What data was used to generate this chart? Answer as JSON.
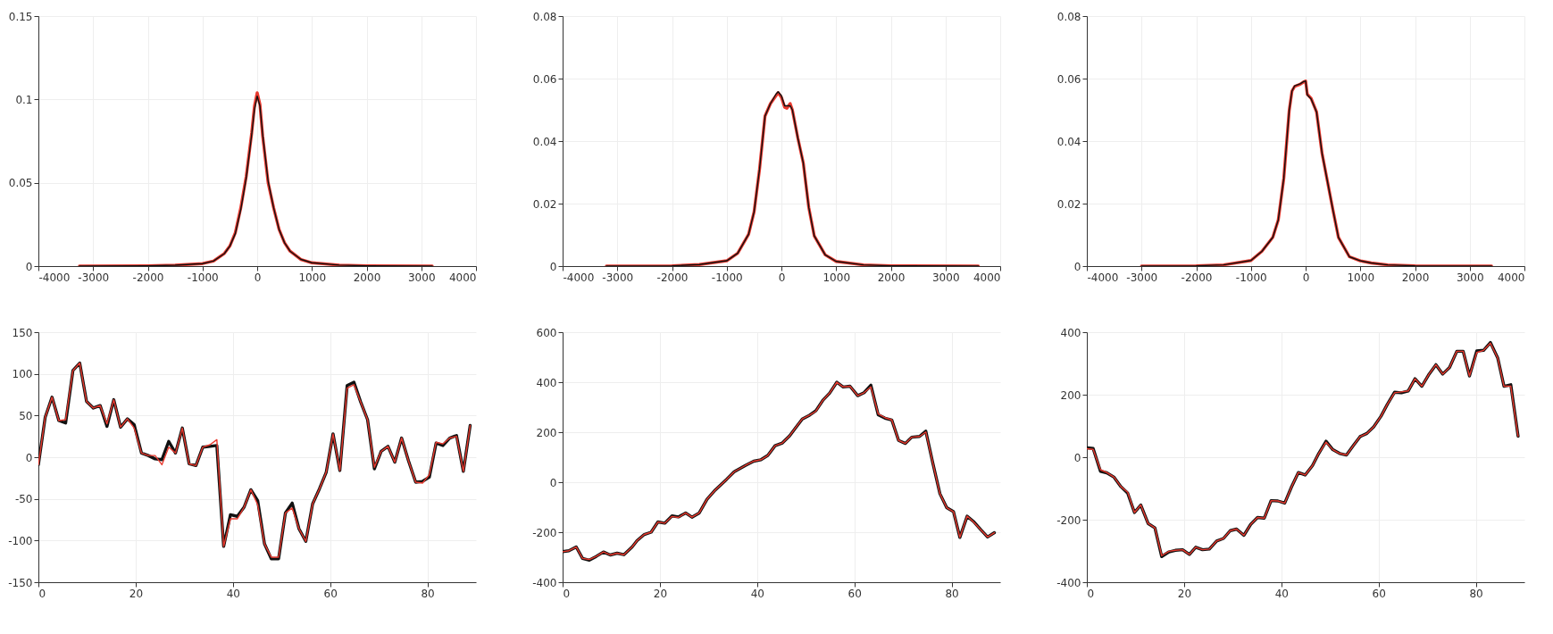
{
  "chart_data": [
    {
      "type": "line",
      "xlim": [
        -4000,
        4000
      ],
      "xticks": [
        -4000,
        -3000,
        -2000,
        -1000,
        0,
        1000,
        2000,
        3000,
        4000
      ],
      "ylim": [
        0,
        0.15
      ],
      "yticks": [
        0,
        0.05,
        0.1,
        0.15
      ],
      "grid": true,
      "series": [
        {
          "color": "#e8392e",
          "x": [
            -3250,
            -2000,
            -1500,
            -1000,
            -800,
            -600,
            -500,
            -400,
            -300,
            -200,
            -100,
            -50,
            0,
            50,
            100,
            200,
            300,
            400,
            500,
            600,
            800,
            1000,
            1500,
            2000,
            3200
          ],
          "values": [
            0,
            0.0002,
            0.0005,
            0.0015,
            0.003,
            0.0076,
            0.012,
            0.02,
            0.035,
            0.054,
            0.08,
            0.096,
            0.104,
            0.097,
            0.078,
            0.05,
            0.035,
            0.022,
            0.014,
            0.009,
            0.004,
            0.002,
            0.0006,
            0.0002,
            0
          ]
        },
        {
          "color": "#111111",
          "x": [
            -3250,
            -2000,
            -1500,
            -1000,
            -800,
            -600,
            -500,
            -400,
            -300,
            -200,
            -100,
            -50,
            0,
            50,
            100,
            200,
            300,
            400,
            500,
            600,
            800,
            1000,
            1500,
            2000,
            3200
          ],
          "values": [
            0,
            0.0002,
            0.0005,
            0.0015,
            0.003,
            0.0075,
            0.012,
            0.0195,
            0.034,
            0.053,
            0.079,
            0.094,
            0.102,
            0.096,
            0.079,
            0.051,
            0.035,
            0.022,
            0.014,
            0.009,
            0.004,
            0.002,
            0.0006,
            0.0002,
            0
          ]
        }
      ]
    },
    {
      "type": "line",
      "xlim": [
        -4000,
        4000
      ],
      "xticks": [
        -4000,
        -3000,
        -2000,
        -1000,
        0,
        1000,
        2000,
        3000,
        4000
      ],
      "ylim": [
        0,
        0.08
      ],
      "yticks": [
        0,
        0.02,
        0.04,
        0.06,
        0.08
      ],
      "grid": true,
      "series": [
        {
          "color": "#e8392e",
          "x": [
            -3200,
            -2000,
            -1500,
            -1000,
            -800,
            -600,
            -500,
            -400,
            -300,
            -200,
            -100,
            -60,
            0,
            60,
            100,
            160,
            200,
            300,
            400,
            500,
            600,
            800,
            1000,
            1500,
            2000,
            3600
          ],
          "values": [
            0,
            0.0001,
            0.0005,
            0.0017,
            0.0041,
            0.0102,
            0.0173,
            0.031,
            0.048,
            0.052,
            0.0545,
            0.0555,
            0.054,
            0.0508,
            0.0505,
            0.052,
            0.05,
            0.041,
            0.033,
            0.0188,
            0.0097,
            0.0036,
            0.0015,
            0.0004,
            0.0001,
            0
          ]
        },
        {
          "color": "#111111",
          "x": [
            -3200,
            -2000,
            -1500,
            -1000,
            -800,
            -600,
            -500,
            -400,
            -300,
            -200,
            -100,
            -60,
            0,
            60,
            100,
            160,
            200,
            300,
            400,
            500,
            600,
            800,
            1000,
            1500,
            2000,
            3600
          ],
          "values": [
            0,
            0.0001,
            0.0005,
            0.0017,
            0.0041,
            0.0102,
            0.0173,
            0.031,
            0.048,
            0.052,
            0.055,
            0.0558,
            0.0545,
            0.0513,
            0.0513,
            0.0513,
            0.05,
            0.041,
            0.033,
            0.0188,
            0.0097,
            0.0036,
            0.0015,
            0.0004,
            0.0001,
            0
          ]
        }
      ]
    },
    {
      "type": "line",
      "xlim": [
        -4000,
        4000
      ],
      "xticks": [
        -4000,
        -3000,
        -2000,
        -1000,
        0,
        1000,
        2000,
        3000,
        4000
      ],
      "ylim": [
        0,
        0.08
      ],
      "yticks": [
        0,
        0.02,
        0.04,
        0.06,
        0.08
      ],
      "grid": true,
      "series": [
        {
          "color": "#e8392e",
          "x": [
            -3000,
            -2000,
            -1500,
            -1000,
            -800,
            -600,
            -500,
            -400,
            -300,
            -250,
            -200,
            -100,
            -30,
            0,
            30,
            100,
            200,
            300,
            400,
            500,
            600,
            800,
            1000,
            1200,
            1500,
            2000,
            3400
          ],
          "values": [
            0,
            0.0001,
            0.0004,
            0.0018,
            0.0047,
            0.0092,
            0.0148,
            0.028,
            0.0498,
            0.056,
            0.0575,
            0.0582,
            0.059,
            0.0592,
            0.055,
            0.0537,
            0.0493,
            0.0361,
            0.027,
            0.0179,
            0.0092,
            0.003,
            0.0017,
            0.001,
            0.0004,
            0.0001,
            0
          ]
        },
        {
          "color": "#111111",
          "x": [
            -3000,
            -2000,
            -1500,
            -1000,
            -800,
            -600,
            -500,
            -400,
            -300,
            -250,
            -200,
            -100,
            -30,
            0,
            30,
            100,
            200,
            300,
            400,
            500,
            600,
            800,
            1000,
            1200,
            1500,
            2000,
            3400
          ],
          "values": [
            0,
            0.0001,
            0.0004,
            0.0018,
            0.0047,
            0.0092,
            0.0148,
            0.028,
            0.0498,
            0.056,
            0.0577,
            0.0583,
            0.0591,
            0.0592,
            0.0548,
            0.0535,
            0.0493,
            0.0361,
            0.027,
            0.0179,
            0.0092,
            0.003,
            0.0017,
            0.001,
            0.0004,
            0.0001,
            0
          ]
        }
      ]
    },
    {
      "type": "line",
      "xlim": [
        0,
        90
      ],
      "xticks": [
        0,
        20,
        40,
        60,
        80
      ],
      "ylim": [
        -150,
        150
      ],
      "yticks": [
        -150,
        -100,
        -50,
        0,
        50,
        100,
        150
      ],
      "grid": true,
      "series": [
        {
          "color": "#111111",
          "x": [
            0,
            1.4,
            2.8,
            4.2,
            5.6,
            7.1,
            8.5,
            9.9,
            11.3,
            12.7,
            14.1,
            15.5,
            16.9,
            18.3,
            19.7,
            21.2,
            22.6,
            24,
            25.4,
            26.8,
            28.2,
            29.6,
            31,
            32.4,
            33.8,
            35.3,
            36.7,
            38.1,
            39.5,
            40.9,
            42.3,
            43.7,
            45.1,
            46.5,
            47.9,
            49.4,
            50.8,
            52.2,
            53.6,
            55,
            56.4,
            57.8,
            59.2,
            60.6,
            62,
            63.5,
            64.9,
            66.3,
            67.7,
            69.1,
            70.5,
            71.9,
            73.3,
            74.7,
            76.1,
            77.6,
            79,
            80.4,
            81.8,
            83.2,
            84.6,
            86,
            87.4,
            88.8
          ],
          "values": [
            -9,
            48,
            72,
            44,
            41,
            104,
            113,
            67,
            59,
            62,
            37,
            69,
            36,
            46,
            39,
            5,
            2,
            -2,
            -3,
            19,
            5,
            35,
            -8,
            -10,
            12,
            13,
            14,
            -107,
            -69,
            -71,
            -60,
            -39,
            -52,
            -104,
            -122,
            -122,
            -67,
            -55,
            -86,
            -101,
            -56,
            -38,
            -18,
            28,
            -16,
            86,
            90,
            66,
            45,
            -14,
            7,
            13,
            -6,
            23,
            -4,
            -30,
            -29,
            -24,
            17,
            14,
            23,
            26,
            -17,
            38
          ]
        },
        {
          "color": "#e8392e",
          "x": [
            0,
            1.4,
            2.8,
            4.2,
            5.6,
            7.1,
            8.5,
            9.9,
            11.3,
            12.7,
            14.1,
            15.5,
            16.9,
            18.3,
            19.7,
            21.2,
            22.6,
            24,
            25.4,
            26.8,
            28.2,
            29.6,
            31,
            32.4,
            33.8,
            35.3,
            36.7,
            38.1,
            39.5,
            40.9,
            42.3,
            43.7,
            45.1,
            46.5,
            47.9,
            49.4,
            50.8,
            52.2,
            53.6,
            55,
            56.4,
            57.8,
            59.2,
            60.6,
            62,
            63.5,
            64.9,
            66.3,
            67.7,
            69.1,
            70.5,
            71.9,
            73.3,
            74.7,
            76.1,
            77.6,
            79,
            80.4,
            81.8,
            83.2,
            84.6,
            86,
            87.4,
            88.8
          ],
          "values": [
            -9,
            48,
            72,
            44,
            45,
            104,
            113,
            67,
            59,
            62,
            40,
            69,
            36,
            46,
            35,
            5,
            2,
            2,
            -9,
            12,
            5,
            35,
            -8,
            -10,
            12,
            15,
            21,
            -107,
            -74,
            -74,
            -60,
            -39,
            -57,
            -104,
            -120,
            -120,
            -67,
            -61,
            -86,
            -101,
            -56,
            -38,
            -18,
            28,
            -16,
            83,
            87,
            66,
            45,
            -12,
            7,
            13,
            -6,
            23,
            -4,
            -30,
            -31,
            -21,
            18,
            16,
            23,
            25,
            -17,
            38
          ]
        }
      ]
    },
    {
      "type": "line",
      "xlim": [
        0,
        90
      ],
      "xticks": [
        0,
        20,
        40,
        60,
        80
      ],
      "ylim": [
        -400,
        600
      ],
      "yticks": [
        -400,
        -200,
        0,
        200,
        400,
        600
      ],
      "grid": true,
      "series": [
        {
          "color": "#111111",
          "x": [
            0,
            1.3,
            2.8,
            4.1,
            5.5,
            6.9,
            8.4,
            9.8,
            11.2,
            12.6,
            14.3,
            15.3,
            16.8,
            18.2,
            19.6,
            21,
            22.5,
            23.8,
            25.3,
            26.6,
            28.1,
            29.7,
            31.4,
            33.7,
            35.3,
            37.6,
            39.3,
            40.8,
            42.2,
            43.7,
            45.2,
            46.7,
            48,
            49.3,
            50.8,
            52.1,
            53.5,
            54.9,
            56.4,
            57.7,
            59.1,
            60.7,
            62,
            63.4,
            64.9,
            66.3,
            67.7,
            69.1,
            70.5,
            71.8,
            73.4,
            74.7,
            76.1,
            77.6,
            79,
            80.4,
            81.7,
            83.2,
            84.5,
            86,
            87.4,
            88.8
          ],
          "values": [
            -278,
            -274,
            -259,
            -305,
            -312,
            -297,
            -279,
            -291,
            -284,
            -290,
            -259,
            -234,
            -209,
            -200,
            -159,
            -164,
            -135,
            -139,
            -123,
            -140,
            -123,
            -68,
            -31,
            11,
            42,
            67,
            84,
            90,
            107,
            146,
            157,
            186,
            220,
            253,
            268,
            286,
            327,
            356,
            400,
            381,
            384,
            346,
            358,
            388,
            270,
            256,
            249,
            167,
            155,
            180,
            183,
            204,
            80,
            -46,
            -102,
            -118,
            -221,
            -136,
            -157,
            -190,
            -219,
            -202
          ]
        },
        {
          "color": "#e8392e",
          "x": [
            0,
            1.3,
            2.8,
            4.1,
            5.5,
            6.9,
            8.4,
            9.8,
            11.2,
            12.6,
            14.3,
            15.3,
            16.8,
            18.2,
            19.6,
            21,
            22.5,
            23.8,
            25.3,
            26.6,
            28.1,
            29.7,
            31.4,
            33.7,
            35.3,
            37.6,
            39.3,
            40.8,
            42.2,
            43.7,
            45.2,
            46.7,
            48,
            49.3,
            50.8,
            52.1,
            53.5,
            54.9,
            56.4,
            57.7,
            59.1,
            60.7,
            62,
            63.4,
            64.9,
            66.3,
            67.7,
            69.1,
            70.5,
            71.8,
            73.4,
            74.7,
            76.1,
            77.6,
            79,
            80.4,
            81.7,
            83.2,
            84.5,
            86,
            87.4,
            88.8
          ],
          "values": [
            -278,
            -274,
            -259,
            -305,
            -309,
            -297,
            -279,
            -291,
            -284,
            -290,
            -259,
            -234,
            -209,
            -200,
            -159,
            -164,
            -137,
            -141,
            -123,
            -140,
            -123,
            -68,
            -31,
            11,
            42,
            67,
            84,
            90,
            107,
            146,
            157,
            186,
            220,
            253,
            268,
            284,
            327,
            356,
            400,
            381,
            384,
            346,
            358,
            381,
            274,
            258,
            249,
            167,
            155,
            180,
            183,
            201,
            80,
            -46,
            -102,
            -118,
            -221,
            -136,
            -159,
            -190,
            -219,
            -202
          ]
        }
      ]
    },
    {
      "type": "line",
      "xlim": [
        0,
        90
      ],
      "xticks": [
        0,
        20,
        40,
        60,
        80
      ],
      "ylim": [
        -400,
        400
      ],
      "yticks": [
        -400,
        -200,
        0,
        200,
        400
      ],
      "grid": true,
      "series": [
        {
          "color": "#111111",
          "x": [
            0,
            1.3,
            2.8,
            4.1,
            5.6,
            7,
            8.4,
            9.8,
            11.1,
            12.6,
            14,
            15.4,
            16.9,
            18.2,
            19.7,
            21.1,
            22.4,
            23.8,
            25.2,
            26.7,
            28.1,
            29.5,
            30.8,
            32.3,
            33.7,
            35.1,
            36.5,
            37.9,
            39.3,
            40.7,
            42.1,
            43.5,
            44.9,
            46.4,
            47.7,
            49.2,
            50.6,
            52,
            53.4,
            54.9,
            56.2,
            57.6,
            59,
            60.5,
            61.8,
            63.3,
            64.7,
            66.1,
            67.5,
            68.9,
            70.4,
            71.8,
            73.2,
            74.6,
            76.1,
            77.4,
            78.7,
            80.2,
            81.6,
            83,
            84.5,
            85.8,
            87.2,
            88.7
          ],
          "values": [
            30,
            28,
            -45,
            -50,
            -64,
            -94,
            -115,
            -177,
            -153,
            -212,
            -226,
            -318,
            -303,
            -298,
            -296,
            -311,
            -288,
            -296,
            -294,
            -268,
            -260,
            -235,
            -230,
            -250,
            -215,
            -193,
            -195,
            -139,
            -140,
            -147,
            -95,
            -49,
            -57,
            -27,
            12,
            51,
            24,
            12,
            7,
            39,
            66,
            76,
            97,
            131,
            169,
            208,
            206,
            212,
            251,
            227,
            266,
            296,
            266,
            287,
            339,
            339,
            260,
            340,
            342,
            367,
            318,
            227,
            232,
            67
          ]
        },
        {
          "color": "#e8392e",
          "x": [
            0,
            1.3,
            2.8,
            4.1,
            5.6,
            7,
            8.4,
            9.8,
            11.1,
            12.6,
            14,
            15.4,
            16.9,
            18.2,
            19.7,
            21.1,
            22.4,
            23.8,
            25.2,
            26.7,
            28.1,
            29.5,
            30.8,
            32.3,
            33.7,
            35.1,
            36.5,
            37.9,
            39.3,
            40.7,
            42.1,
            43.5,
            44.9,
            46.4,
            47.7,
            49.2,
            50.6,
            52,
            53.4,
            54.9,
            56.2,
            57.6,
            59,
            60.5,
            61.8,
            63.3,
            64.7,
            66.1,
            67.5,
            68.9,
            70.4,
            71.8,
            73.2,
            74.6,
            76.1,
            77.4,
            78.7,
            80.2,
            81.6,
            83,
            84.5,
            85.8,
            87.2,
            88.7
          ],
          "values": [
            27,
            25,
            -40,
            -49,
            -64,
            -94,
            -112,
            -177,
            -153,
            -212,
            -226,
            -315,
            -301,
            -298,
            -296,
            -311,
            -288,
            -296,
            -294,
            -268,
            -260,
            -235,
            -230,
            -250,
            -215,
            -193,
            -195,
            -139,
            -140,
            -147,
            -95,
            -49,
            -57,
            -27,
            12,
            48,
            24,
            12,
            7,
            39,
            66,
            76,
            97,
            131,
            169,
            206,
            209,
            212,
            251,
            227,
            266,
            296,
            266,
            287,
            339,
            339,
            260,
            335,
            342,
            365,
            318,
            227,
            227,
            67
          ]
        }
      ]
    }
  ]
}
